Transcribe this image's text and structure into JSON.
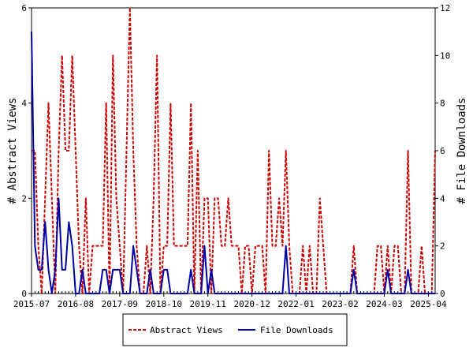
{
  "chart_data": {
    "type": "line",
    "title": "",
    "xlabel": "",
    "ylabel": "# Abstract Views",
    "y2label": "# File Downloads",
    "x_tick_labels": [
      "2015-07",
      "2016-08",
      "2017-09",
      "2018-10",
      "2019-11",
      "2020-12",
      "2022-01",
      "2023-02",
      "2024-03",
      "2025-04"
    ],
    "x_range": [
      "2015-07",
      "2025-06"
    ],
    "ylim": [
      0,
      6
    ],
    "yticks": [
      "0",
      "2",
      "4",
      "6"
    ],
    "y2lim": [
      0,
      12
    ],
    "y2ticks": [
      "0",
      "2",
      "4",
      "6",
      "8",
      "10",
      "12"
    ],
    "grid": false,
    "legend_position": "bottom-center",
    "series": [
      {
        "name": "Abstract Views",
        "axis": "left",
        "color": "#cc0000",
        "style": "dashed",
        "points": [
          [
            "2015-07",
            3
          ],
          [
            "2015-08",
            3
          ],
          [
            "2015-09",
            1
          ],
          [
            "2015-10",
            0
          ],
          [
            "2015-11",
            2
          ],
          [
            "2015-12",
            4
          ],
          [
            "2016-01",
            2
          ],
          [
            "2016-02",
            0
          ],
          [
            "2016-03",
            3
          ],
          [
            "2016-04",
            5
          ],
          [
            "2016-05",
            3
          ],
          [
            "2016-06",
            3
          ],
          [
            "2016-07",
            5
          ],
          [
            "2016-08",
            3
          ],
          [
            "2016-09",
            1
          ],
          [
            "2016-10",
            0
          ],
          [
            "2016-11",
            2
          ],
          [
            "2016-12",
            0
          ],
          [
            "2017-01",
            1
          ],
          [
            "2017-02",
            1
          ],
          [
            "2017-03",
            1
          ],
          [
            "2017-04",
            1
          ],
          [
            "2017-05",
            4
          ],
          [
            "2017-06",
            0
          ],
          [
            "2017-07",
            5
          ],
          [
            "2017-08",
            2
          ],
          [
            "2017-09",
            1
          ],
          [
            "2017-10",
            0
          ],
          [
            "2017-11",
            3
          ],
          [
            "2017-12",
            6
          ],
          [
            "2018-01",
            3
          ],
          [
            "2018-02",
            1
          ],
          [
            "2018-03",
            0
          ],
          [
            "2018-04",
            0
          ],
          [
            "2018-05",
            1
          ],
          [
            "2018-06",
            0
          ],
          [
            "2018-07",
            2
          ],
          [
            "2018-08",
            5
          ],
          [
            "2018-09",
            0
          ],
          [
            "2018-10",
            1
          ],
          [
            "2018-11",
            1
          ],
          [
            "2018-12",
            4
          ],
          [
            "2019-01",
            1
          ],
          [
            "2019-02",
            1
          ],
          [
            "2019-03",
            1
          ],
          [
            "2019-04",
            1
          ],
          [
            "2019-05",
            1
          ],
          [
            "2019-06",
            4
          ],
          [
            "2019-07",
            0
          ],
          [
            "2019-08",
            3
          ],
          [
            "2019-09",
            0
          ],
          [
            "2019-10",
            2
          ],
          [
            "2019-11",
            2
          ],
          [
            "2019-12",
            0
          ],
          [
            "2020-01",
            2
          ],
          [
            "2020-02",
            2
          ],
          [
            "2020-03",
            1
          ],
          [
            "2020-04",
            1
          ],
          [
            "2020-05",
            2
          ],
          [
            "2020-06",
            1
          ],
          [
            "2020-07",
            1
          ],
          [
            "2020-08",
            1
          ],
          [
            "2020-09",
            0
          ],
          [
            "2020-10",
            1
          ],
          [
            "2020-11",
            1
          ],
          [
            "2020-12",
            0
          ],
          [
            "2021-01",
            1
          ],
          [
            "2021-02",
            1
          ],
          [
            "2021-03",
            1
          ],
          [
            "2021-04",
            0
          ],
          [
            "2021-05",
            3
          ],
          [
            "2021-06",
            1
          ],
          [
            "2021-07",
            1
          ],
          [
            "2021-08",
            2
          ],
          [
            "2021-09",
            1
          ],
          [
            "2021-10",
            3
          ],
          [
            "2021-11",
            1
          ],
          [
            "2021-12",
            0
          ],
          [
            "2022-01",
            0
          ],
          [
            "2022-02",
            0
          ],
          [
            "2022-03",
            1
          ],
          [
            "2022-04",
            0
          ],
          [
            "2022-05",
            1
          ],
          [
            "2022-06",
            0
          ],
          [
            "2022-07",
            0
          ],
          [
            "2022-08",
            2
          ],
          [
            "2022-09",
            1
          ],
          [
            "2022-10",
            0
          ],
          [
            "2022-11",
            0
          ],
          [
            "2022-12",
            0
          ],
          [
            "2023-01",
            0
          ],
          [
            "2023-02",
            0
          ],
          [
            "2023-03",
            0
          ],
          [
            "2023-04",
            0
          ],
          [
            "2023-05",
            0
          ],
          [
            "2023-06",
            1
          ],
          [
            "2023-07",
            0
          ],
          [
            "2023-08",
            0
          ],
          [
            "2023-09",
            0
          ],
          [
            "2023-10",
            0
          ],
          [
            "2023-11",
            0
          ],
          [
            "2023-12",
            0
          ],
          [
            "2024-01",
            1
          ],
          [
            "2024-02",
            1
          ],
          [
            "2024-03",
            0
          ],
          [
            "2024-04",
            1
          ],
          [
            "2024-05",
            0
          ],
          [
            "2024-06",
            1
          ],
          [
            "2024-07",
            1
          ],
          [
            "2024-08",
            0
          ],
          [
            "2024-09",
            0
          ],
          [
            "2024-10",
            3
          ],
          [
            "2024-11",
            0
          ],
          [
            "2024-12",
            0
          ],
          [
            "2025-01",
            0
          ],
          [
            "2025-02",
            1
          ],
          [
            "2025-03",
            0
          ],
          [
            "2025-04",
            0
          ],
          [
            "2025-05",
            0
          ],
          [
            "2025-06",
            3
          ]
        ]
      },
      {
        "name": "File Downloads",
        "axis": "right",
        "color": "#0000aa",
        "style": "solid",
        "points": [
          [
            "2015-07",
            11
          ],
          [
            "2015-08",
            2
          ],
          [
            "2015-09",
            1
          ],
          [
            "2015-10",
            1
          ],
          [
            "2015-11",
            3
          ],
          [
            "2015-12",
            1
          ],
          [
            "2016-01",
            0
          ],
          [
            "2016-02",
            1
          ],
          [
            "2016-03",
            4
          ],
          [
            "2016-04",
            1
          ],
          [
            "2016-05",
            1
          ],
          [
            "2016-06",
            3
          ],
          [
            "2016-07",
            2
          ],
          [
            "2016-08",
            0
          ],
          [
            "2016-09",
            0
          ],
          [
            "2016-10",
            1
          ],
          [
            "2016-11",
            0
          ],
          [
            "2016-12",
            0
          ],
          [
            "2017-01",
            0
          ],
          [
            "2017-02",
            0
          ],
          [
            "2017-03",
            0
          ],
          [
            "2017-04",
            1
          ],
          [
            "2017-05",
            1
          ],
          [
            "2017-06",
            0
          ],
          [
            "2017-07",
            1
          ],
          [
            "2017-08",
            1
          ],
          [
            "2017-09",
            1
          ],
          [
            "2017-10",
            0
          ],
          [
            "2017-11",
            0
          ],
          [
            "2017-12",
            0
          ],
          [
            "2018-01",
            2
          ],
          [
            "2018-02",
            1
          ],
          [
            "2018-03",
            0
          ],
          [
            "2018-04",
            0
          ],
          [
            "2018-05",
            0
          ],
          [
            "2018-06",
            1
          ],
          [
            "2018-07",
            0
          ],
          [
            "2018-08",
            0
          ],
          [
            "2018-09",
            0
          ],
          [
            "2018-10",
            1
          ],
          [
            "2018-11",
            1
          ],
          [
            "2018-12",
            0
          ],
          [
            "2019-01",
            0
          ],
          [
            "2019-02",
            0
          ],
          [
            "2019-03",
            0
          ],
          [
            "2019-04",
            0
          ],
          [
            "2019-05",
            0
          ],
          [
            "2019-06",
            1
          ],
          [
            "2019-07",
            0
          ],
          [
            "2019-08",
            0
          ],
          [
            "2019-09",
            0
          ],
          [
            "2019-10",
            2
          ],
          [
            "2019-11",
            0
          ],
          [
            "2019-12",
            1
          ],
          [
            "2020-01",
            0
          ],
          [
            "2020-02",
            0
          ],
          [
            "2020-03",
            0
          ],
          [
            "2020-04",
            0
          ],
          [
            "2020-05",
            0
          ],
          [
            "2020-06",
            0
          ],
          [
            "2020-07",
            0
          ],
          [
            "2020-08",
            0
          ],
          [
            "2020-09",
            0
          ],
          [
            "2020-10",
            0
          ],
          [
            "2020-11",
            0
          ],
          [
            "2020-12",
            0
          ],
          [
            "2021-01",
            0
          ],
          [
            "2021-02",
            0
          ],
          [
            "2021-03",
            0
          ],
          [
            "2021-04",
            0
          ],
          [
            "2021-05",
            0
          ],
          [
            "2021-06",
            0
          ],
          [
            "2021-07",
            0
          ],
          [
            "2021-08",
            0
          ],
          [
            "2021-09",
            0
          ],
          [
            "2021-10",
            2
          ],
          [
            "2021-11",
            0
          ],
          [
            "2021-12",
            0
          ],
          [
            "2022-01",
            0
          ],
          [
            "2022-02",
            0
          ],
          [
            "2022-03",
            0
          ],
          [
            "2022-04",
            0
          ],
          [
            "2022-05",
            0
          ],
          [
            "2022-06",
            0
          ],
          [
            "2022-07",
            0
          ],
          [
            "2022-08",
            0
          ],
          [
            "2022-09",
            0
          ],
          [
            "2022-10",
            0
          ],
          [
            "2022-11",
            0
          ],
          [
            "2022-12",
            0
          ],
          [
            "2023-01",
            0
          ],
          [
            "2023-02",
            0
          ],
          [
            "2023-03",
            0
          ],
          [
            "2023-04",
            0
          ],
          [
            "2023-05",
            0
          ],
          [
            "2023-06",
            1
          ],
          [
            "2023-07",
            0
          ],
          [
            "2023-08",
            0
          ],
          [
            "2023-09",
            0
          ],
          [
            "2023-10",
            0
          ],
          [
            "2023-11",
            0
          ],
          [
            "2023-12",
            0
          ],
          [
            "2024-01",
            0
          ],
          [
            "2024-02",
            0
          ],
          [
            "2024-03",
            0
          ],
          [
            "2024-04",
            1
          ],
          [
            "2024-05",
            0
          ],
          [
            "2024-06",
            0
          ],
          [
            "2024-07",
            0
          ],
          [
            "2024-08",
            0
          ],
          [
            "2024-09",
            0
          ],
          [
            "2024-10",
            1
          ],
          [
            "2024-11",
            0
          ],
          [
            "2024-12",
            0
          ],
          [
            "2025-01",
            0
          ],
          [
            "2025-02",
            0
          ],
          [
            "2025-03",
            0
          ],
          [
            "2025-04",
            0
          ],
          [
            "2025-05",
            0
          ],
          [
            "2025-06",
            0
          ]
        ]
      }
    ]
  }
}
